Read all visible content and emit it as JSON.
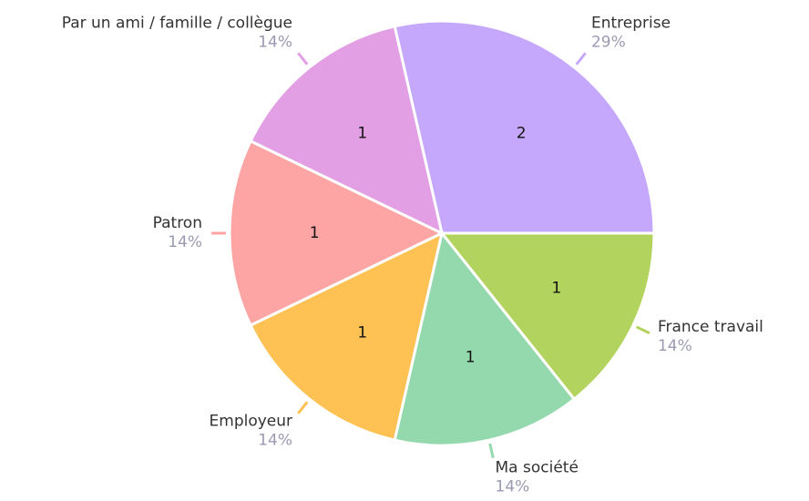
{
  "chart_data": {
    "type": "pie",
    "categories": [
      "Entreprise",
      "France travail",
      "Ma société",
      "Employeur",
      "Patron",
      "Par un ami / famille / collègue"
    ],
    "values": [
      2,
      1,
      1,
      1,
      1,
      1
    ],
    "percentages": [
      29,
      14,
      14,
      14,
      14,
      14
    ],
    "percentage_labels": [
      "29%",
      "14%",
      "14%",
      "14%",
      "14%",
      "14%"
    ],
    "colors": [
      "#c5a8fc",
      "#b2d45e",
      "#94d9ad",
      "#fec153",
      "#fda4a4",
      "#e29fe4"
    ]
  }
}
